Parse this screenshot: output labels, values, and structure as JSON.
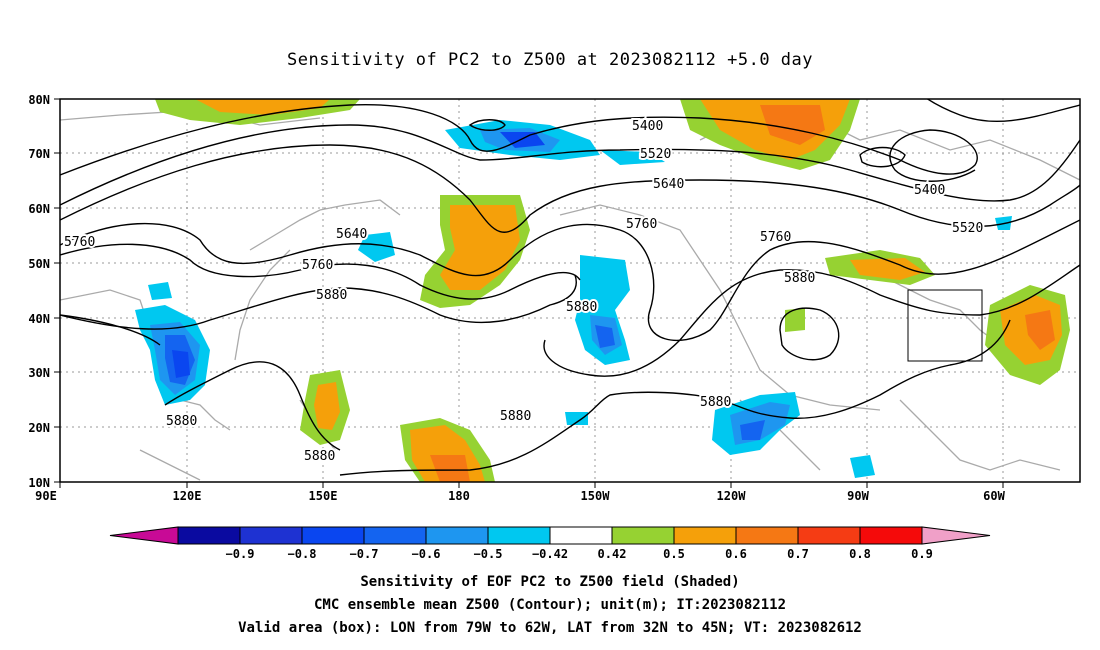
{
  "title": "Sensitivity of PC2 to Z500 at 2023082112 +5.0 day",
  "lat_labels": [
    "80N",
    "70N",
    "60N",
    "50N",
    "40N",
    "30N",
    "20N",
    "10N"
  ],
  "lon_labels": [
    "90E",
    "120E",
    "150E",
    "180",
    "150W",
    "120W",
    "90W",
    "60W"
  ],
  "contour_labels": [
    "5400",
    "5520",
    "5640",
    "5760",
    "5880",
    "5400",
    "5520",
    "5640",
    "5760",
    "5880",
    "5760",
    "5880",
    "5880",
    "5880",
    "5880",
    "5880",
    "5760"
  ],
  "colorbar": {
    "labels": [
      "-0.9",
      "-0.8",
      "-0.7",
      "-0.6",
      "-0.5",
      "-0.42",
      "0.42",
      "0.5",
      "0.6",
      "0.7",
      "0.8",
      "0.9"
    ],
    "colors": [
      "#c80a96",
      "#0a0aa0",
      "#1e32d2",
      "#0a46f0",
      "#1464f0",
      "#1e96f0",
      "#00c8f0",
      "#ffffff",
      "#96d232",
      "#f5a00a",
      "#f57814",
      "#f53c14",
      "#f50a0a",
      "#f0a0c8"
    ]
  },
  "captions": [
    "Sensitivity of EOF PC2 to Z500 field (Shaded)",
    "CMC ensemble mean Z500 (Contour); unit(m); IT:2023082112",
    "Valid area (box): LON from 79W to 62W, LAT from 32N to 45N; VT: 2023082612"
  ]
}
